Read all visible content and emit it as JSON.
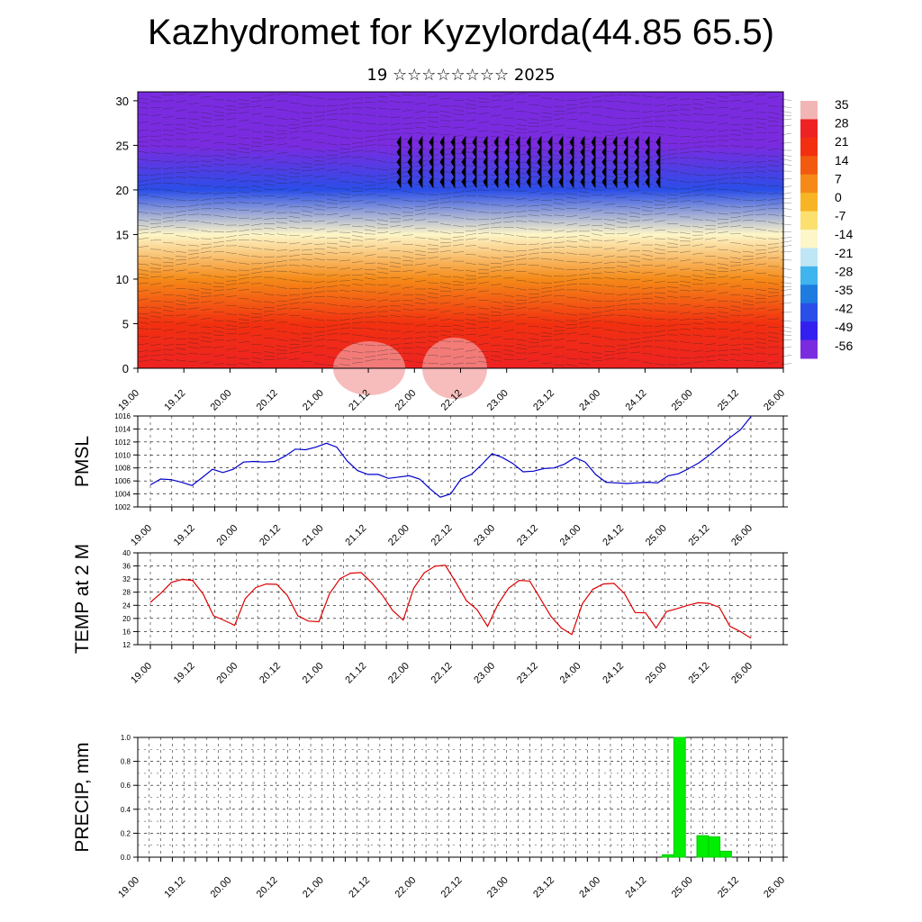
{
  "page": {
    "title": "Kazhydromet for Kyzylorda(44.85 65.5)",
    "subtitle": "19 ☆☆☆☆☆☆☆☆ 2025"
  },
  "colors": {
    "pmsl_line": "#0000cc",
    "temp_line": "#dd0000",
    "precip_bar": "#00ee00",
    "grid": "#000000"
  },
  "chart_data": [
    {
      "id": "cross_section",
      "type": "heatmap",
      "title": "",
      "xlabel": "",
      "ylabel": "",
      "x_ticks": [
        "19.00",
        "19.12",
        "20.00",
        "20.12",
        "21.00",
        "21.12",
        "22.00",
        "22.12",
        "23.00",
        "23.12",
        "24.00",
        "24.12",
        "25.00",
        "25.12",
        "26.00"
      ],
      "y_ticks": [
        0,
        5,
        10,
        15,
        20,
        25,
        30
      ],
      "ylim": [
        0,
        31
      ],
      "colorbar": {
        "labels": [
          "35",
          "28",
          "21",
          "14",
          "7",
          "0",
          "-7",
          "-14",
          "-21",
          "-28",
          "-35",
          "-42",
          "-49",
          "-56"
        ],
        "colors": [
          "#f2b5b5",
          "#ee2222",
          "#f23010",
          "#f25a10",
          "#f58a18",
          "#f7b424",
          "#fbe070",
          "#fdf6c8",
          "#bfe6f5",
          "#3fb4ee",
          "#1e7be0",
          "#2a4ee8",
          "#3320f0",
          "#7a2be0"
        ]
      },
      "contour_layers": [
        {
          "altitude": 0,
          "temperature": 30
        },
        {
          "altitude": 5,
          "temperature": 20
        },
        {
          "altitude": 10,
          "temperature": 5
        },
        {
          "altitude": 15,
          "temperature": -12
        },
        {
          "altitude": 20,
          "temperature": -40
        },
        {
          "altitude": 25,
          "temperature": -58
        },
        {
          "altitude": 30,
          "temperature": -56
        }
      ]
    },
    {
      "id": "pmsl",
      "type": "line",
      "ylabel": "PMSL",
      "x_ticks": [
        "19.00",
        "19.12",
        "20.00",
        "20.12",
        "21.00",
        "21.12",
        "22.00",
        "22.12",
        "23.00",
        "23.12",
        "24.00",
        "24.12",
        "25.00",
        "25.12",
        "26.00"
      ],
      "y_ticks": [
        1002,
        1004,
        1006,
        1008,
        1010,
        1012,
        1014,
        1016
      ],
      "ylim": [
        1002,
        1016
      ],
      "series": [
        {
          "values": [
            1005.4,
            1006.3,
            1006.2,
            1005.8,
            1005.3,
            1006.5,
            1007.8,
            1007.3,
            1007.8,
            1008.9,
            1009.0,
            1008.9,
            1009.0,
            1009.8,
            1010.9,
            1010.8,
            1011.2,
            1011.8,
            1011.2,
            1009.1,
            1007.6,
            1007.0,
            1007.0,
            1006.4,
            1006.6,
            1006.8,
            1006.3,
            1004.8,
            1003.5,
            1004.0,
            1006.3,
            1007.0,
            1008.5,
            1010.2,
            1009.6,
            1008.7,
            1007.4,
            1007.5,
            1007.9,
            1008.0,
            1008.6,
            1009.6,
            1008.9,
            1007.0,
            1005.8,
            1005.7,
            1005.6,
            1005.7,
            1005.8,
            1005.7,
            1006.8,
            1007.1,
            1007.9,
            1008.8,
            1010.0,
            1011.3,
            1012.7,
            1013.9,
            1015.9
          ]
        }
      ]
    },
    {
      "id": "temp2m",
      "type": "line",
      "ylabel": "TEMP at 2 M",
      "x_ticks": [
        "19.00",
        "19.12",
        "20.00",
        "20.12",
        "21.00",
        "21.12",
        "22.00",
        "22.12",
        "23.00",
        "23.12",
        "24.00",
        "24.12",
        "25.00",
        "25.12",
        "26.00"
      ],
      "y_ticks": [
        12,
        16,
        20,
        24,
        28,
        32,
        36,
        40
      ],
      "ylim": [
        12,
        40
      ],
      "series": [
        {
          "values": [
            24.9,
            27.7,
            31.0,
            31.9,
            31.6,
            27.5,
            20.8,
            19.4,
            17.9,
            26.0,
            29.4,
            30.5,
            30.4,
            27.0,
            20.8,
            19.2,
            19.0,
            27.5,
            32.1,
            33.8,
            34.0,
            31.0,
            27.2,
            22.4,
            19.5,
            29.2,
            33.9,
            35.9,
            36.2,
            30.9,
            25.4,
            22.7,
            17.6,
            24.4,
            29.2,
            31.6,
            31.4,
            26.1,
            20.7,
            17.1,
            15.1,
            24.5,
            28.9,
            30.5,
            30.7,
            27.6,
            21.8,
            21.7,
            17.1,
            22.1,
            23.0,
            24.0,
            24.8,
            24.6,
            23.4,
            17.6,
            16.0,
            14.0
          ]
        }
      ]
    },
    {
      "id": "precip",
      "type": "bar",
      "ylabel": "PRECIP, mm",
      "x_ticks": [
        "19.00",
        "19.12",
        "20.00",
        "20.12",
        "21.00",
        "21.12",
        "22.00",
        "22.12",
        "23.00",
        "23.12",
        "24.00",
        "24.12",
        "25.00",
        "25.12",
        "26.00"
      ],
      "y_ticks": [
        "0.0",
        "0.2",
        "0.4",
        "0.6",
        "0.8",
        "1.0"
      ],
      "ylim": [
        0,
        1.0
      ],
      "bars": [
        {
          "time": 5.75,
          "value": 0.02
        },
        {
          "time": 5.875,
          "value": 1.0
        },
        {
          "time": 6.125,
          "value": 0.18
        },
        {
          "time": 6.25,
          "value": 0.17
        },
        {
          "time": 6.375,
          "value": 0.05
        }
      ]
    }
  ]
}
